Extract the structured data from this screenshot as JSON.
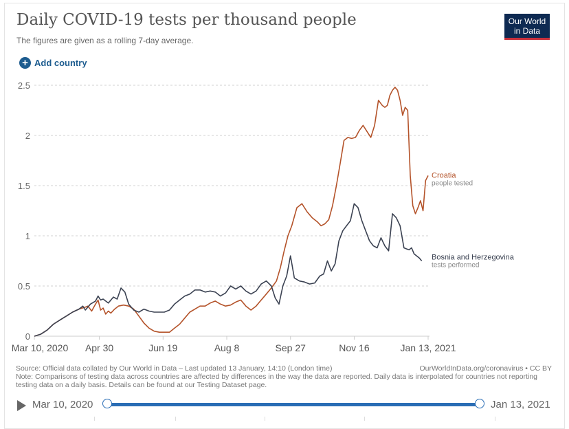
{
  "header": {
    "title": "Daily COVID-19 tests per thousand people",
    "subtitle": "The figures are given as a rolling 7-day average.",
    "logo_line1": "Our World",
    "logo_line2": "in Data",
    "add_country_label": "Add country",
    "add_icon": "plus-circle-icon"
  },
  "colors": {
    "croatia": "#b4532a",
    "bosnia": "#3b4252",
    "accent": "#1d5c8f",
    "timeline": "#2a6db5",
    "logo_bg": "#0e2a52",
    "logo_bar": "#c8313c"
  },
  "chart_data": {
    "type": "line",
    "title": "Daily COVID-19 tests per thousand people",
    "subtitle": "The figures are given as a rolling 7-day average.",
    "xlabel": "",
    "ylabel": "",
    "x_unit": "days since Mar 10, 2020",
    "xlim": [
      0,
      309
    ],
    "ylim": [
      0,
      2.5
    ],
    "grid": "horizontal dashed",
    "y_ticks": [
      0,
      0.5,
      1,
      1.5,
      2,
      2.5
    ],
    "y_tick_labels": [
      "0",
      "0.5",
      "1",
      "1.5",
      "2",
      "2.5"
    ],
    "x_ticks": [
      0,
      51,
      101,
      151,
      201,
      251,
      309
    ],
    "x_tick_labels": [
      "Mar 10, 2020",
      "Apr 30",
      "Jun 19",
      "Aug 8",
      "Sep 27",
      "Nov 16",
      "Jan 13, 2021"
    ],
    "legend_placement": "right, at line ends",
    "series": [
      {
        "name": "Croatia",
        "sublabel": "people tested",
        "x": [
          0,
          5,
          10,
          15,
          20,
          25,
          30,
          35,
          40,
          42,
          45,
          48,
          50,
          52,
          54,
          56,
          58,
          60,
          63,
          66,
          70,
          74,
          78,
          82,
          86,
          90,
          94,
          98,
          102,
          106,
          110,
          114,
          118,
          122,
          126,
          130,
          134,
          138,
          142,
          146,
          150,
          154,
          158,
          162,
          166,
          170,
          174,
          178,
          182,
          186,
          190,
          193,
          196,
          199,
          202,
          206,
          210,
          214,
          218,
          222,
          225,
          228,
          231,
          234,
          237,
          240,
          243,
          246,
          249,
          252,
          255,
          258,
          261,
          264,
          267,
          270,
          273,
          275,
          277,
          279,
          281,
          283,
          285,
          287,
          289,
          291,
          293,
          295,
          297,
          299,
          301,
          303,
          305,
          307,
          309
        ],
        "y": [
          0.0,
          0.02,
          0.06,
          0.12,
          0.16,
          0.2,
          0.24,
          0.27,
          0.29,
          0.3,
          0.25,
          0.32,
          0.36,
          0.26,
          0.28,
          0.22,
          0.25,
          0.23,
          0.27,
          0.3,
          0.31,
          0.3,
          0.27,
          0.2,
          0.13,
          0.08,
          0.05,
          0.04,
          0.04,
          0.04,
          0.08,
          0.12,
          0.18,
          0.24,
          0.27,
          0.3,
          0.3,
          0.33,
          0.35,
          0.32,
          0.3,
          0.31,
          0.34,
          0.36,
          0.3,
          0.26,
          0.3,
          0.36,
          0.42,
          0.48,
          0.55,
          0.68,
          0.85,
          1.0,
          1.1,
          1.28,
          1.32,
          1.24,
          1.18,
          1.14,
          1.1,
          1.12,
          1.16,
          1.3,
          1.5,
          1.72,
          1.95,
          1.98,
          1.97,
          1.98,
          2.05,
          2.1,
          2.04,
          1.98,
          2.1,
          2.35,
          2.3,
          2.28,
          2.3,
          2.4,
          2.45,
          2.48,
          2.45,
          2.35,
          2.2,
          2.28,
          2.25,
          1.6,
          1.3,
          1.22,
          1.28,
          1.35,
          1.25,
          1.55,
          1.6
        ]
      },
      {
        "name": "Bosnia and Herzegovina",
        "sublabel": "tests performed",
        "x": [
          0,
          5,
          10,
          15,
          20,
          25,
          30,
          35,
          38,
          40,
          44,
          48,
          50,
          52,
          54,
          58,
          62,
          65,
          68,
          71,
          74,
          78,
          82,
          86,
          90,
          94,
          98,
          102,
          106,
          110,
          114,
          118,
          122,
          126,
          130,
          134,
          138,
          142,
          146,
          150,
          154,
          158,
          162,
          166,
          170,
          174,
          178,
          182,
          186,
          189,
          192,
          195,
          198,
          201,
          204,
          208,
          212,
          216,
          220,
          224,
          227,
          230,
          233,
          236,
          239,
          242,
          245,
          248,
          251,
          254,
          257,
          260,
          263,
          266,
          269,
          272,
          275,
          278,
          281,
          284,
          287,
          290,
          292,
          294,
          296,
          298,
          300,
          302,
          304
        ],
        "y": [
          0.0,
          0.02,
          0.06,
          0.12,
          0.16,
          0.2,
          0.24,
          0.27,
          0.3,
          0.26,
          0.32,
          0.35,
          0.4,
          0.36,
          0.37,
          0.33,
          0.39,
          0.37,
          0.48,
          0.44,
          0.32,
          0.26,
          0.24,
          0.27,
          0.25,
          0.24,
          0.24,
          0.24,
          0.26,
          0.32,
          0.36,
          0.4,
          0.42,
          0.46,
          0.46,
          0.44,
          0.45,
          0.44,
          0.4,
          0.43,
          0.5,
          0.47,
          0.5,
          0.45,
          0.42,
          0.45,
          0.52,
          0.55,
          0.5,
          0.38,
          0.32,
          0.5,
          0.6,
          0.8,
          0.58,
          0.55,
          0.54,
          0.52,
          0.53,
          0.6,
          0.62,
          0.75,
          0.65,
          0.72,
          0.95,
          1.05,
          1.1,
          1.15,
          1.32,
          1.28,
          1.15,
          1.05,
          0.95,
          0.9,
          0.88,
          0.98,
          0.9,
          0.85,
          1.22,
          1.18,
          1.1,
          0.88,
          0.87,
          0.86,
          0.88,
          0.82,
          0.8,
          0.78,
          0.75
        ]
      }
    ]
  },
  "footer": {
    "source": "Source: Official data collated by Our World in Data – Last updated 13 January, 14:10 (London time)",
    "credit": "OurWorldInData.org/coronavirus • CC BY",
    "note": "Note: Comparisons of testing data across countries are affected by differences in the way the data are reported. Daily data is interpolated for countries not reporting testing data on a daily basis. Details can be found at our Testing Dataset page."
  },
  "timeline": {
    "start_label": "Mar 10, 2020",
    "end_label": "Jan 13, 2021",
    "play_icon": "play-icon"
  }
}
